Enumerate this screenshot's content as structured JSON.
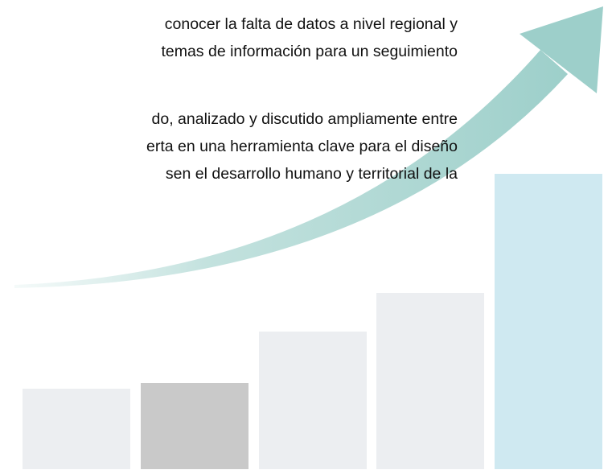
{
  "paragraphs": [
    {
      "lines": [
        "conocer la falta de datos a nivel regional y",
        "temas de información para un seguimiento"
      ]
    },
    {
      "lines": [
        "do, analizado y discutido ampliamente entre",
        "erta en una herramienta clave para el diseño",
        "sen el desarrollo humano y territorial de la"
      ]
    }
  ]
}
